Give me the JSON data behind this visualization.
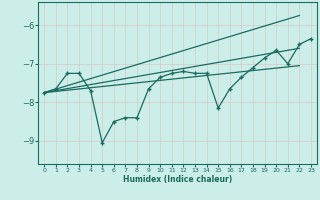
{
  "xlabel": "Humidex (Indice chaleur)",
  "ylabel": "",
  "bg_color": "#cceee8",
  "grid_color": "#b8ddd8",
  "line_color": "#1a6b60",
  "xlim": [
    -0.5,
    23.5
  ],
  "ylim": [
    -9.6,
    -5.4
  ],
  "yticks": [
    -9,
    -8,
    -7,
    -6
  ],
  "xticks": [
    0,
    1,
    2,
    3,
    4,
    5,
    6,
    7,
    8,
    9,
    10,
    11,
    12,
    13,
    14,
    15,
    16,
    17,
    18,
    19,
    20,
    21,
    22,
    23
  ],
  "line1_x": [
    0,
    1,
    2,
    3,
    4,
    5,
    6,
    7,
    8,
    9,
    10,
    11,
    12,
    13,
    14,
    15,
    16,
    17,
    18,
    19,
    20,
    21,
    22,
    23
  ],
  "line1_y": [
    -7.75,
    -7.65,
    -7.25,
    -7.25,
    -7.7,
    -9.05,
    -8.5,
    -8.4,
    -8.4,
    -7.65,
    -7.35,
    -7.25,
    -7.2,
    -7.25,
    -7.25,
    -8.15,
    -7.65,
    -7.35,
    -7.1,
    -6.85,
    -6.65,
    -7.0,
    -6.5,
    -6.35
  ],
  "line2_x": [
    0,
    22
  ],
  "line2_y": [
    -7.75,
    -5.75
  ],
  "line3_x": [
    0,
    22
  ],
  "line3_y": [
    -7.75,
    -6.6
  ],
  "line4_x": [
    0,
    22
  ],
  "line4_y": [
    -7.75,
    -7.05
  ]
}
